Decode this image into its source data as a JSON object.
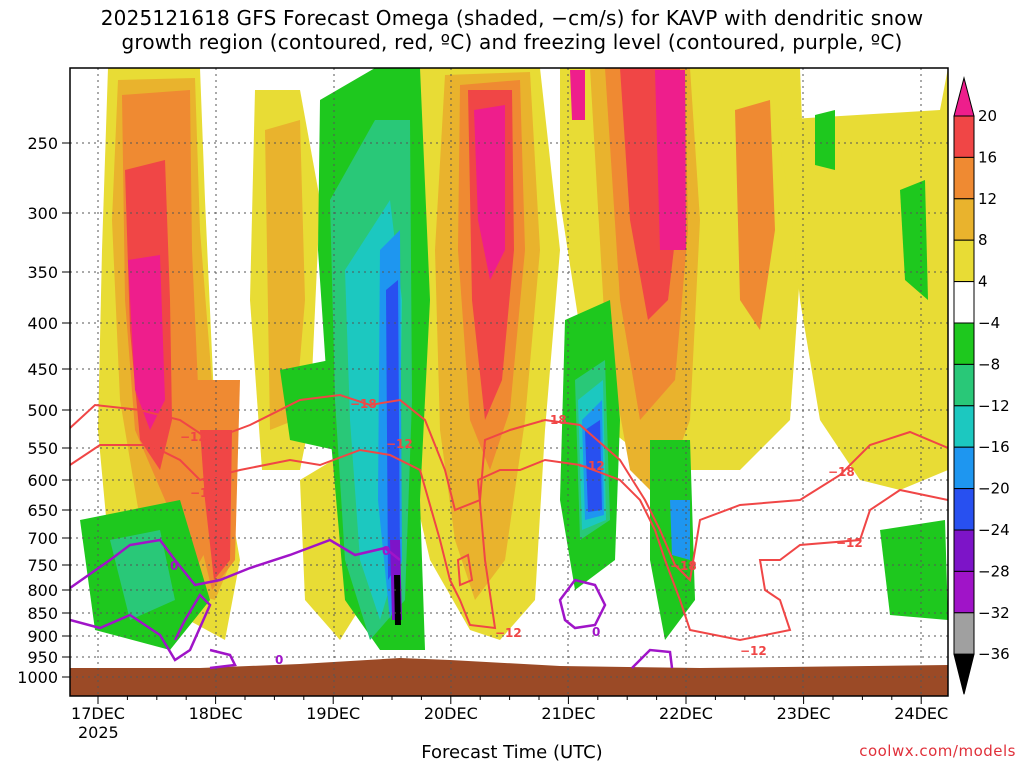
{
  "chart_data": {
    "type": "heatmap",
    "title_line1": "2025121618 GFS Forecast Omega (shaded, −cm/s) for KAVP with dendritic snow",
    "title_line2": "growth region (contoured, red, ºC) and freezing level (contoured, purple, ºC)",
    "xlabel": "Forecast Time (UTC)",
    "credit": "coolwx.com/models",
    "year_label": "2025",
    "y_levels": [
      "250",
      "300",
      "350",
      "400",
      "450",
      "500",
      "550",
      "600",
      "650",
      "700",
      "750",
      "800",
      "850",
      "900",
      "950",
      "1000"
    ],
    "x_ticks": [
      "17DEC",
      "18DEC",
      "19DEC",
      "20DEC",
      "21DEC",
      "22DEC",
      "23DEC",
      "24DEC"
    ],
    "colorbar_labels": [
      "20",
      "16",
      "12",
      "8",
      "4",
      "−4",
      "−8",
      "−12",
      "−16",
      "−20",
      "−24",
      "−28",
      "−32",
      "−36"
    ],
    "colors": {
      "magenta": "#ee1e8c",
      "red": "#f04646",
      "orange": "#ef8a32",
      "gold": "#e9b32d",
      "yellow": "#e8dc35",
      "white": "#ffffff",
      "green": "#1ec81e",
      "ltgreen": "#29c878",
      "teal": "#1cc8c0",
      "cyan": "#1e96f0",
      "blue": "#2850f0",
      "purple": "#7d14c8",
      "violet": "#a014c8",
      "gray": "#a0a0a0",
      "black": "#000000",
      "ground": "#9b4a26",
      "dgz": "#f04646",
      "freezing": "#a014c8"
    },
    "contour_labels": {
      "dgz": [
        "−12",
        "−18",
        "−12",
        "−18",
        "−12",
        "−18",
        "−12",
        "−12",
        "−18",
        "−12",
        "−12",
        "−18"
      ],
      "freezing": [
        "0",
        "0",
        "0",
        "0"
      ]
    }
  }
}
